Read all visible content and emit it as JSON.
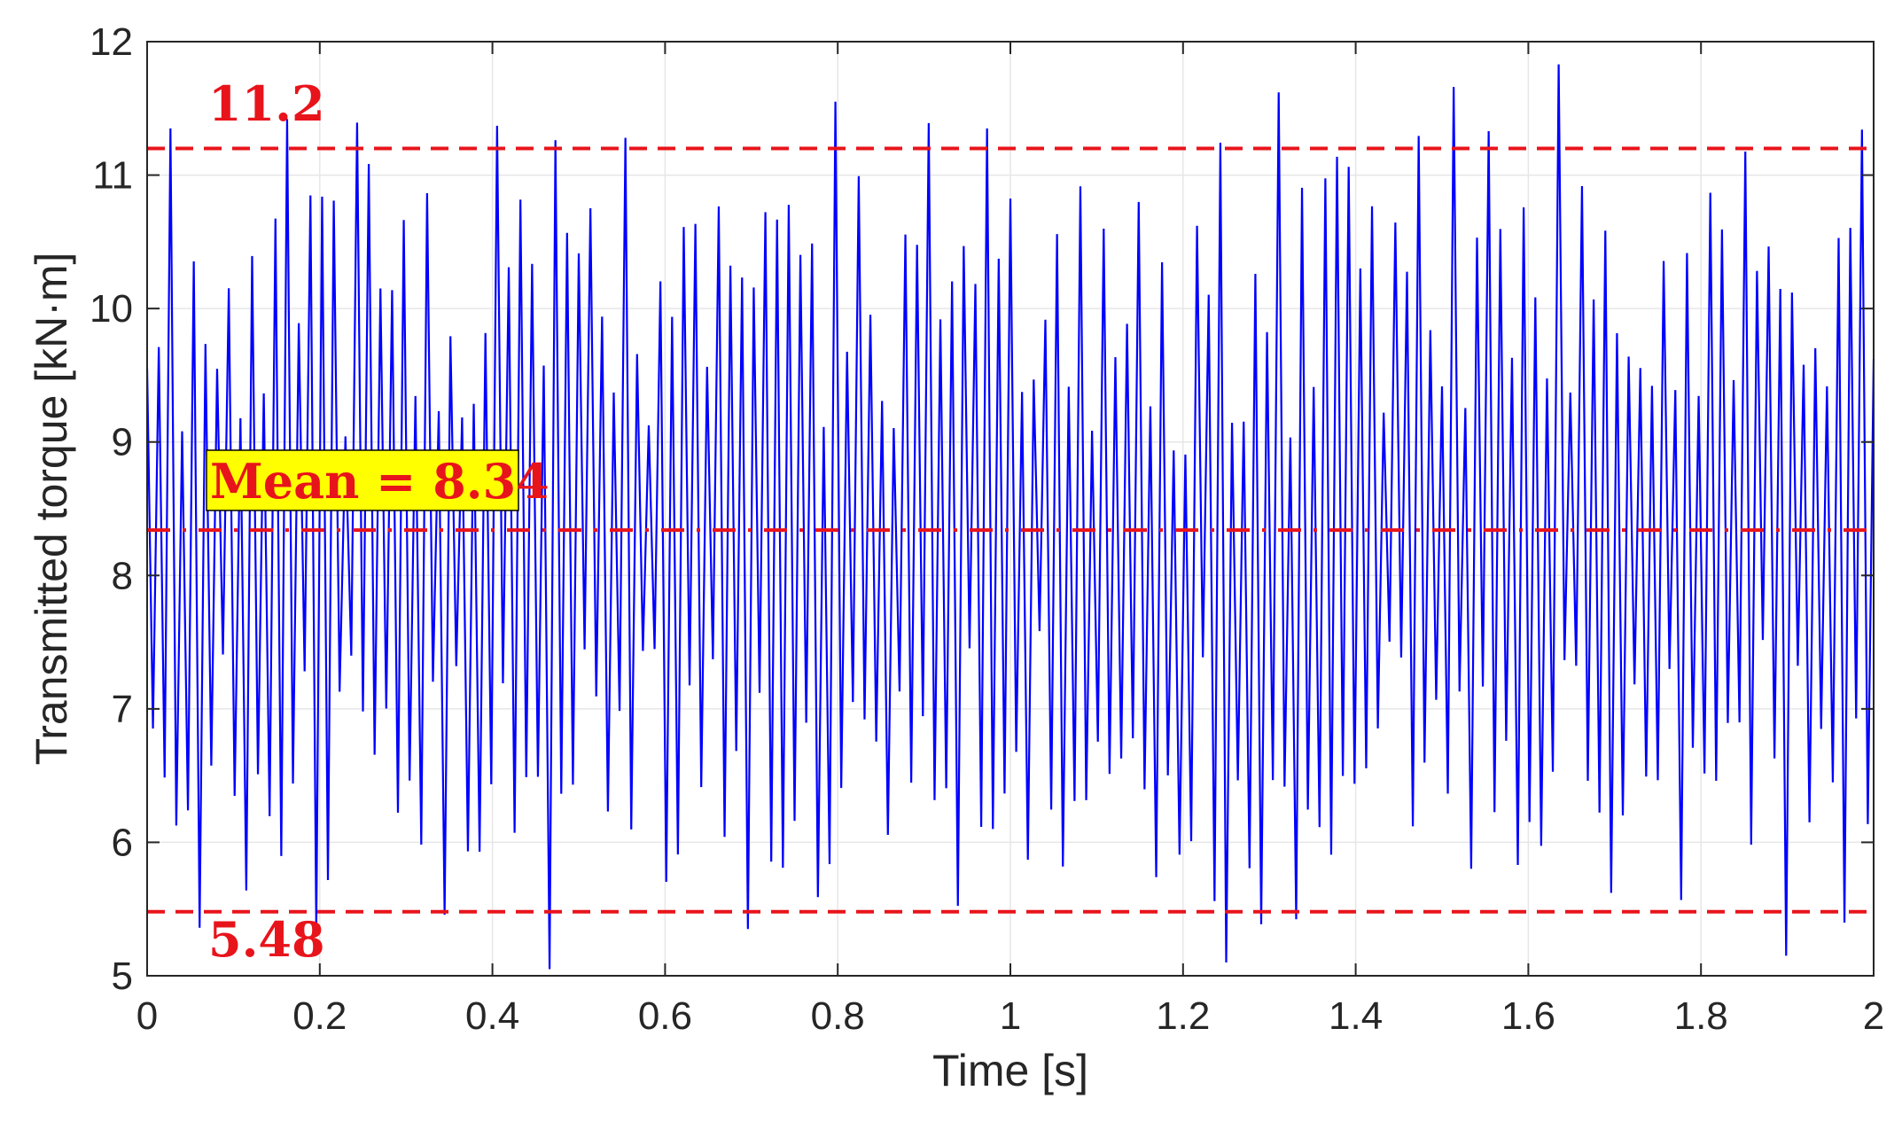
{
  "chart_data": {
    "type": "line",
    "xlabel": "Time [s]",
    "ylabel": "Transmitted torque [kN·m]",
    "xlim": [
      0,
      2
    ],
    "ylim": [
      5,
      12
    ],
    "x_ticks": [
      "0",
      "0.2",
      "0.4",
      "0.6",
      "0.8",
      "1",
      "1.2",
      "1.4",
      "1.6",
      "1.8",
      "2"
    ],
    "y_ticks": [
      "5",
      "6",
      "7",
      "8",
      "9",
      "10",
      "11",
      "12"
    ],
    "grid": true,
    "series": [
      {
        "color": "#0000ff",
        "sample_interval_s": 0.0135,
        "approx_range": [
          5.05,
          11.83
        ],
        "peaks_s": [
          {
            "t": 0.03,
            "v": 11.35
          },
          {
            "t": 0.165,
            "v": 11.42
          },
          {
            "t": 0.4,
            "v": 11.37
          },
          {
            "t": 0.465,
            "v": 5.05
          },
          {
            "t": 0.79,
            "v": 11.55
          },
          {
            "t": 1.25,
            "v": 5.1
          },
          {
            "t": 1.31,
            "v": 11.62
          },
          {
            "t": 1.51,
            "v": 11.66
          },
          {
            "t": 1.635,
            "v": 11.83
          },
          {
            "t": 1.9,
            "v": 5.15
          }
        ]
      }
    ],
    "reference_lines": [
      {
        "y": 11.2,
        "style": "dashed",
        "color": "#e8141b",
        "label": "11.2"
      },
      {
        "y": 8.34,
        "style": "dashdot",
        "color": "#e8141b",
        "label": "Mean = 8.34"
      },
      {
        "y": 5.48,
        "style": "dashed",
        "color": "#e8141b",
        "label": "5.48"
      }
    ],
    "colors": {
      "signal": "#0000ff",
      "reference": "#e8141b",
      "label_highlight": "#ffff00"
    }
  }
}
